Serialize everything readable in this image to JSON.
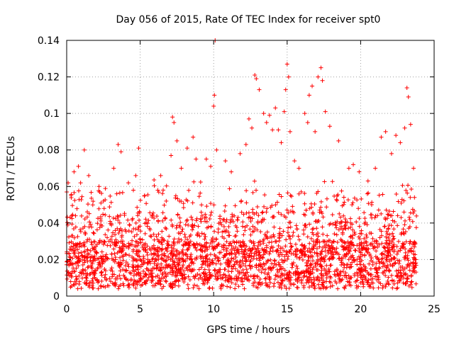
{
  "chart_data": {
    "type": "scatter",
    "title": "Day 056 of 2015, Rate Of TEC Index for receiver spt0",
    "xlabel": "GPS time / hours",
    "ylabel": "ROTI / TECUs",
    "xlim": [
      0,
      25
    ],
    "ylim": [
      0,
      0.14
    ],
    "x_ticks": [
      0,
      5,
      10,
      15,
      20,
      25
    ],
    "x_tick_labels": [
      "0",
      "5",
      "10",
      "15",
      "20",
      "25"
    ],
    "y_ticks": [
      0,
      0.02,
      0.04,
      0.06,
      0.08,
      0.1,
      0.12,
      0.14
    ],
    "y_tick_labels": [
      "0",
      "0.02",
      "0.04",
      "0.06",
      "0.08",
      "0.1",
      "0.12",
      "0.14"
    ],
    "grid": true,
    "marker": "+",
    "color": "#ff0000",
    "x_data_range": [
      0,
      23.8
    ],
    "series": [
      {
        "name": "ROTI",
        "points": [
          [
            0.1,
            0.062
          ],
          [
            0.3,
            0.055
          ],
          [
            0.5,
            0.068
          ],
          [
            0.8,
            0.071
          ],
          [
            1.2,
            0.08
          ],
          [
            1.5,
            0.066
          ],
          [
            2.2,
            0.06
          ],
          [
            2.5,
            0.052
          ],
          [
            3.2,
            0.07
          ],
          [
            3.5,
            0.083
          ],
          [
            3.7,
            0.079
          ],
          [
            4.2,
            0.062
          ],
          [
            4.7,
            0.066
          ],
          [
            4.9,
            0.081
          ],
          [
            5.3,
            0.055
          ],
          [
            6.2,
            0.058
          ],
          [
            6.4,
            0.066
          ],
          [
            7.1,
            0.077
          ],
          [
            7.2,
            0.098
          ],
          [
            7.3,
            0.095
          ],
          [
            7.5,
            0.085
          ],
          [
            7.8,
            0.07
          ],
          [
            8.2,
            0.081
          ],
          [
            8.6,
            0.087
          ],
          [
            8.8,
            0.075
          ],
          [
            9.5,
            0.075
          ],
          [
            9.8,
            0.071
          ],
          [
            10.0,
            0.104
          ],
          [
            10.05,
            0.11
          ],
          [
            10.1,
            0.14
          ],
          [
            10.2,
            0.08
          ],
          [
            10.8,
            0.074
          ],
          [
            11.2,
            0.068
          ],
          [
            11.8,
            0.078
          ],
          [
            12.2,
            0.083
          ],
          [
            12.4,
            0.097
          ],
          [
            12.6,
            0.092
          ],
          [
            12.8,
            0.121
          ],
          [
            12.9,
            0.119
          ],
          [
            13.1,
            0.113
          ],
          [
            13.4,
            0.1
          ],
          [
            13.6,
            0.095
          ],
          [
            13.8,
            0.099
          ],
          [
            14.0,
            0.091
          ],
          [
            14.2,
            0.103
          ],
          [
            14.4,
            0.091
          ],
          [
            14.6,
            0.084
          ],
          [
            14.8,
            0.101
          ],
          [
            14.9,
            0.113
          ],
          [
            15.0,
            0.127
          ],
          [
            15.1,
            0.12
          ],
          [
            15.2,
            0.09
          ],
          [
            15.5,
            0.074
          ],
          [
            15.8,
            0.07
          ],
          [
            16.2,
            0.1
          ],
          [
            16.4,
            0.095
          ],
          [
            16.5,
            0.11
          ],
          [
            16.7,
            0.115
          ],
          [
            16.9,
            0.09
          ],
          [
            17.1,
            0.12
          ],
          [
            17.3,
            0.125
          ],
          [
            17.4,
            0.118
          ],
          [
            17.6,
            0.101
          ],
          [
            17.9,
            0.093
          ],
          [
            18.5,
            0.085
          ],
          [
            19.2,
            0.07
          ],
          [
            19.5,
            0.072
          ],
          [
            19.9,
            0.068
          ],
          [
            20.5,
            0.063
          ],
          [
            21.0,
            0.07
          ],
          [
            21.4,
            0.087
          ],
          [
            21.7,
            0.09
          ],
          [
            22.1,
            0.078
          ],
          [
            22.4,
            0.088
          ],
          [
            22.7,
            0.084
          ],
          [
            23.0,
            0.092
          ],
          [
            23.15,
            0.114
          ],
          [
            23.25,
            0.109
          ],
          [
            23.4,
            0.094
          ],
          [
            23.6,
            0.07
          ]
        ]
      }
    ]
  }
}
